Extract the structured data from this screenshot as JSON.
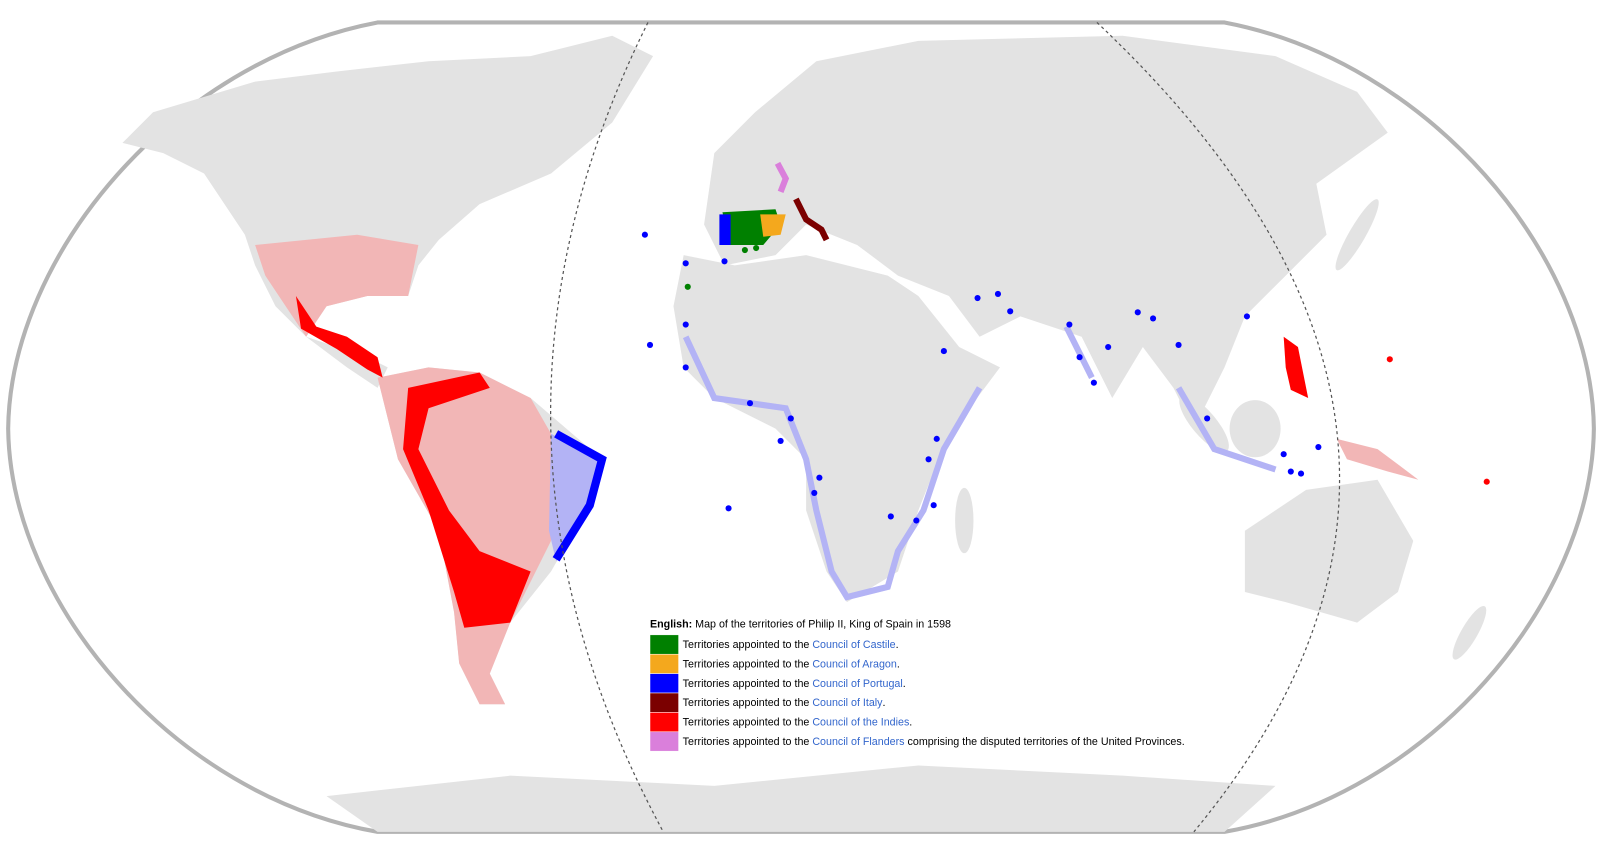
{
  "legend": {
    "label": "English:",
    "title": " Map of the territories of Philip II, King of Spain in 1598",
    "items": [
      {
        "color": "#008000",
        "prefix": "Territories appointed to the ",
        "link": "Council of Castile",
        "suffix": "."
      },
      {
        "color": "#f4a81d",
        "prefix": "Territories appointed to the ",
        "link": "Council of Aragon",
        "suffix": "."
      },
      {
        "color": "#0000ff",
        "prefix": "Territories appointed to the ",
        "link": "Council of Portugal",
        "suffix": "."
      },
      {
        "color": "#7b0000",
        "prefix": "Territories appointed to the ",
        "link": "Council of Italy",
        "suffix": "."
      },
      {
        "color": "#ff0000",
        "prefix": "Territories appointed to the ",
        "link": "Council of the Indies",
        "suffix": "."
      },
      {
        "color": "#da7fdb",
        "prefix": "Territories appointed to the ",
        "link": "Council of Flanders",
        "suffix": " comprising the disputed territories of the United Provinces."
      }
    ]
  }
}
